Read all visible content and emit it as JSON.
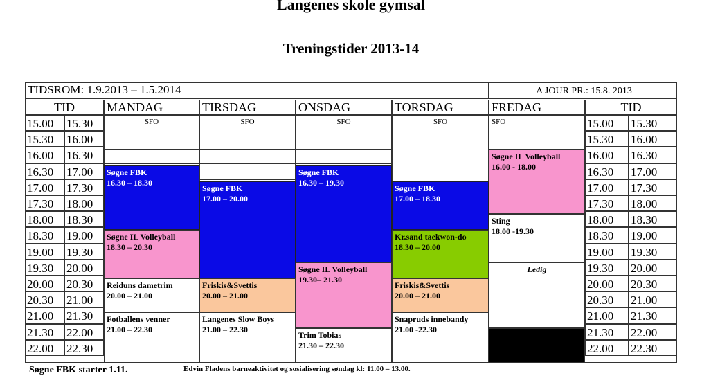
{
  "title": "Langenes skole gymsal",
  "subtitle": "Treningstider 2013-14",
  "period": "TIDSROM: 1.9.2013 – 1.5.2014",
  "updated": "A JOUR PR.: 15.8. 2013",
  "headers": {
    "tid_left": "TID",
    "mandag": "MANDAG",
    "tirsdag": "TIRSDAG",
    "onsdag": "ONSDAG",
    "torsdag": "TORSDAG",
    "fredag": "FREDAG",
    "tid_right": "TID"
  },
  "times": [
    [
      "15.00",
      "15.30"
    ],
    [
      "15.30",
      "16.00"
    ],
    [
      "16.00",
      "16.30"
    ],
    [
      "16.30",
      "17.00"
    ],
    [
      "17.00",
      "17.30"
    ],
    [
      "17.30",
      "18.00"
    ],
    [
      "18.00",
      "18.30"
    ],
    [
      "18.30",
      "19.00"
    ],
    [
      "19.00",
      "19.30"
    ],
    [
      "19.30",
      "20.00"
    ],
    [
      "20.00",
      "20.30"
    ],
    [
      "20.30",
      "21.00"
    ],
    [
      "21.00",
      "21.30"
    ],
    [
      "21.30",
      "22.00"
    ],
    [
      "22.00",
      "22.30"
    ]
  ],
  "sfo": "SFO",
  "blocks": {
    "mon_fbk": {
      "name": "Søgne FBK",
      "time": "16.30 – 18.30"
    },
    "mon_volley": {
      "name": "Søgne IL Volleyball",
      "time": "18.30 – 20.30"
    },
    "mon_reidun": {
      "name": "Reiduns dametrim",
      "time": "20.00 – 21.00"
    },
    "mon_fotball": {
      "name": "Fotballens venner",
      "time": "21.00 – 22.30"
    },
    "tue_fbk": {
      "name": "Søgne FBK",
      "time": "17.00 – 20.00"
    },
    "tue_friskis": {
      "name": "Friskis&Svettis",
      "time": "20.00 – 21.00"
    },
    "tue_slow": {
      "name": "Langenes Slow Boys",
      "time": "21.00 – 22.30"
    },
    "wed_fbk": {
      "name": "Søgne FBK",
      "time": "16.30 – 19.30"
    },
    "wed_volley": {
      "name": "Søgne IL Volleyball",
      "time": "19.30– 21.30"
    },
    "wed_trim": {
      "name": "Trim Tobias",
      "time": "21.30 – 22.30"
    },
    "thu_fbk": {
      "name": "Søgne FBK",
      "time": "17.00 – 18.30"
    },
    "thu_taekwondo": {
      "name": "Kr.sand taekwon-do",
      "time": "18.30 – 20.00"
    },
    "thu_friskis": {
      "name": "Friskis&Svettis",
      "time": "20.00 – 21.00"
    },
    "thu_snapruds": {
      "name": "Snapruds innebandy",
      "time": "21.00 -22.30"
    },
    "fri_volley": {
      "name": "Søgne IL Volleyball",
      "time": "16.00 - 18.00"
    },
    "fri_sting": {
      "name": "Sting",
      "time": "18.00 -19.30"
    },
    "fri_ledig": {
      "name": "Ledig"
    }
  },
  "footer": {
    "note1": "Søgne FBK starter 1.11.",
    "note2": "Edvin Fladens barneaktivitet og sosialisering søndag kl: 11.00 – 13.00."
  }
}
